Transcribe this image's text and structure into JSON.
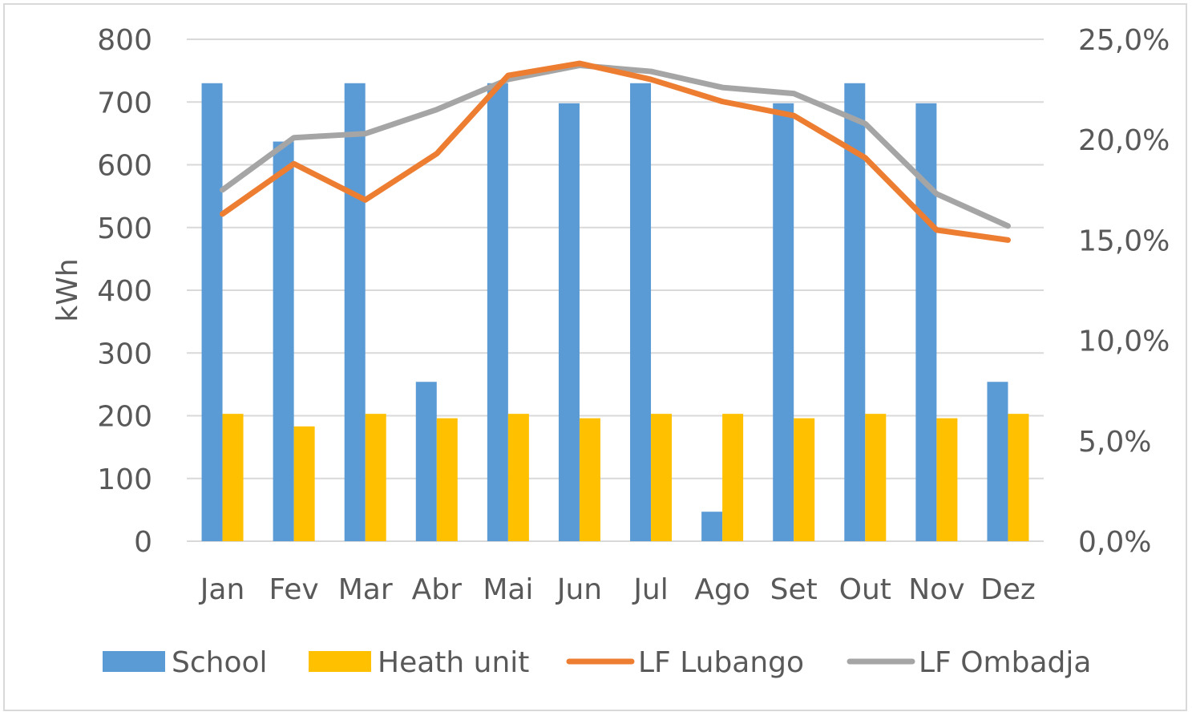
{
  "chart_data": {
    "type": "bar",
    "categories": [
      "Jan",
      "Fev",
      "Mar",
      "Abr",
      "Mai",
      "Jun",
      "Jul",
      "Ago",
      "Set",
      "Out",
      "Nov",
      "Dez"
    ],
    "series": [
      {
        "name": "School",
        "type": "bar",
        "axis": "left",
        "color": "#5b9bd5",
        "values": [
          730,
          637,
          730,
          254,
          730,
          698,
          730,
          47,
          698,
          730,
          698,
          254
        ]
      },
      {
        "name": "Heath unit",
        "type": "bar",
        "axis": "left",
        "color": "#ffc000",
        "values": [
          203,
          183,
          203,
          196,
          203,
          196,
          203,
          203,
          196,
          203,
          196,
          203
        ]
      },
      {
        "name": "LF Lubango",
        "type": "line",
        "axis": "right",
        "color": "#ed7d31",
        "values": [
          16.3,
          18.8,
          17.0,
          19.3,
          23.2,
          23.8,
          23.0,
          21.9,
          21.2,
          19.1,
          15.5,
          15.0
        ]
      },
      {
        "name": "LF Ombadja",
        "type": "line",
        "axis": "right",
        "color": "#a5a5a5",
        "values": [
          17.5,
          20.1,
          20.3,
          21.5,
          23.0,
          23.7,
          23.4,
          22.6,
          22.3,
          20.8,
          17.3,
          15.7
        ]
      }
    ],
    "ylabel": "kWh",
    "ylim": [
      0,
      800
    ],
    "yticks": [
      "0",
      "100",
      "200",
      "300",
      "400",
      "500",
      "600",
      "700",
      "800"
    ],
    "y2lim": [
      0,
      25
    ],
    "y2ticks": [
      "0,0%",
      "5,0%",
      "10,0%",
      "15,0%",
      "20,0%",
      "25,0%"
    ],
    "grid": true,
    "legend_position": "bottom"
  }
}
